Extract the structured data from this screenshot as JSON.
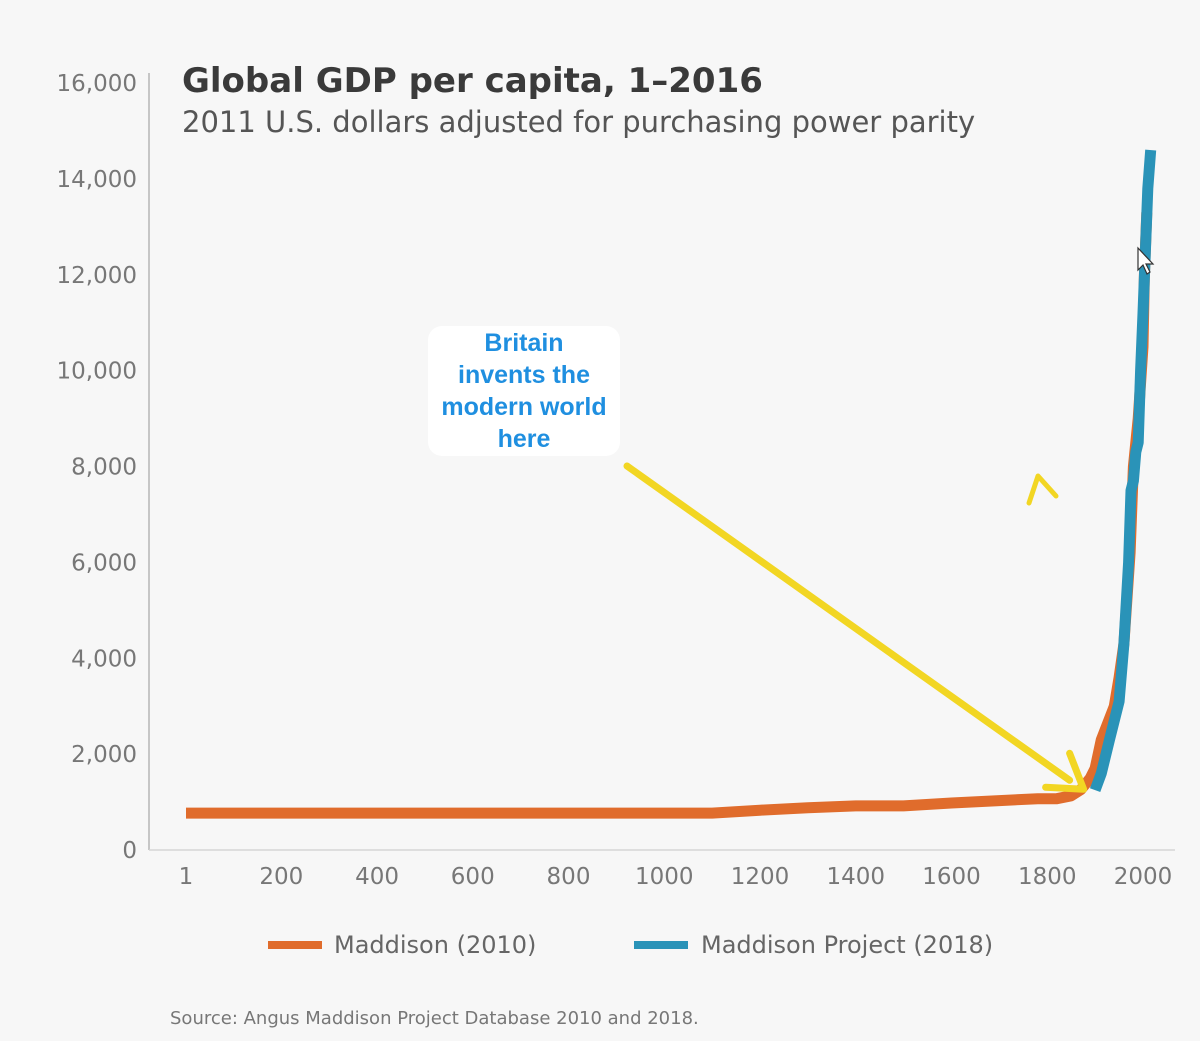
{
  "chart_data": {
    "type": "line",
    "title": "Global GDP per capita, 1–2016",
    "subtitle": "2011 U.S. dollars adjusted for purchasing power parity",
    "xlabel": "",
    "ylabel": "",
    "xlim": [
      1,
      2050
    ],
    "ylim": [
      0,
      16000
    ],
    "x_ticks": [
      {
        "value": 1,
        "label": "1"
      },
      {
        "value": 200,
        "label": "200"
      },
      {
        "value": 400,
        "label": "400"
      },
      {
        "value": 600,
        "label": "600"
      },
      {
        "value": 800,
        "label": "800"
      },
      {
        "value": 1000,
        "label": "1000"
      },
      {
        "value": 1200,
        "label": "1200"
      },
      {
        "value": 1400,
        "label": "1400"
      },
      {
        "value": 1600,
        "label": "1600"
      },
      {
        "value": 1800,
        "label": "1800"
      },
      {
        "value": 2000,
        "label": "2000"
      }
    ],
    "y_ticks": [
      {
        "value": 0,
        "label": "0"
      },
      {
        "value": 2000,
        "label": "2,000"
      },
      {
        "value": 4000,
        "label": "4,000"
      },
      {
        "value": 6000,
        "label": "6,000"
      },
      {
        "value": 8000,
        "label": "8,000"
      },
      {
        "value": 10000,
        "label": "10,000"
      },
      {
        "value": 12000,
        "label": "12,000"
      },
      {
        "value": 14000,
        "label": "14,000"
      },
      {
        "value": 16000,
        "label": "16,000"
      }
    ],
    "grid": false,
    "legend_position": "bottom",
    "series": [
      {
        "name": "Maddison (2010)",
        "color": "#e06c2c",
        "points": [
          [
            1,
            770
          ],
          [
            1000,
            770
          ],
          [
            1100,
            770
          ],
          [
            1200,
            830
          ],
          [
            1300,
            880
          ],
          [
            1400,
            920
          ],
          [
            1500,
            920
          ],
          [
            1600,
            980
          ],
          [
            1700,
            1030
          ],
          [
            1780,
            1070
          ],
          [
            1820,
            1070
          ],
          [
            1850,
            1130
          ],
          [
            1870,
            1260
          ],
          [
            1890,
            1500
          ],
          [
            1900,
            1700
          ],
          [
            1913,
            2300
          ],
          [
            1940,
            3000
          ],
          [
            1950,
            3600
          ],
          [
            1960,
            4300
          ],
          [
            1973,
            6200
          ],
          [
            1980,
            8000
          ],
          [
            1990,
            9000
          ],
          [
            2000,
            10500
          ],
          [
            2003,
            12000
          ],
          [
            2008,
            13300
          ]
        ]
      },
      {
        "name": "Maddison Project (2018)",
        "color": "#2a93b8",
        "points": [
          [
            1900,
            1250
          ],
          [
            1913,
            1600
          ],
          [
            1930,
            2300
          ],
          [
            1950,
            3100
          ],
          [
            1960,
            4300
          ],
          [
            1970,
            6000
          ],
          [
            1975,
            7500
          ],
          [
            1980,
            7700
          ],
          [
            1985,
            8300
          ],
          [
            1990,
            8500
          ],
          [
            1995,
            10000
          ],
          [
            2000,
            11200
          ],
          [
            2005,
            12500
          ],
          [
            2010,
            13800
          ],
          [
            2016,
            14600
          ]
        ]
      }
    ],
    "annotations": [
      {
        "lines": [
          "Britain",
          "invents the",
          "modern world",
          "here"
        ],
        "color": "#1f8fe0",
        "arrow_color": "#f2d623",
        "points_to": {
          "x": 1830,
          "y": 1100
        }
      }
    ]
  },
  "footer": {
    "source": "Source: Angus Maddison Project Database 2010 and 2018."
  }
}
